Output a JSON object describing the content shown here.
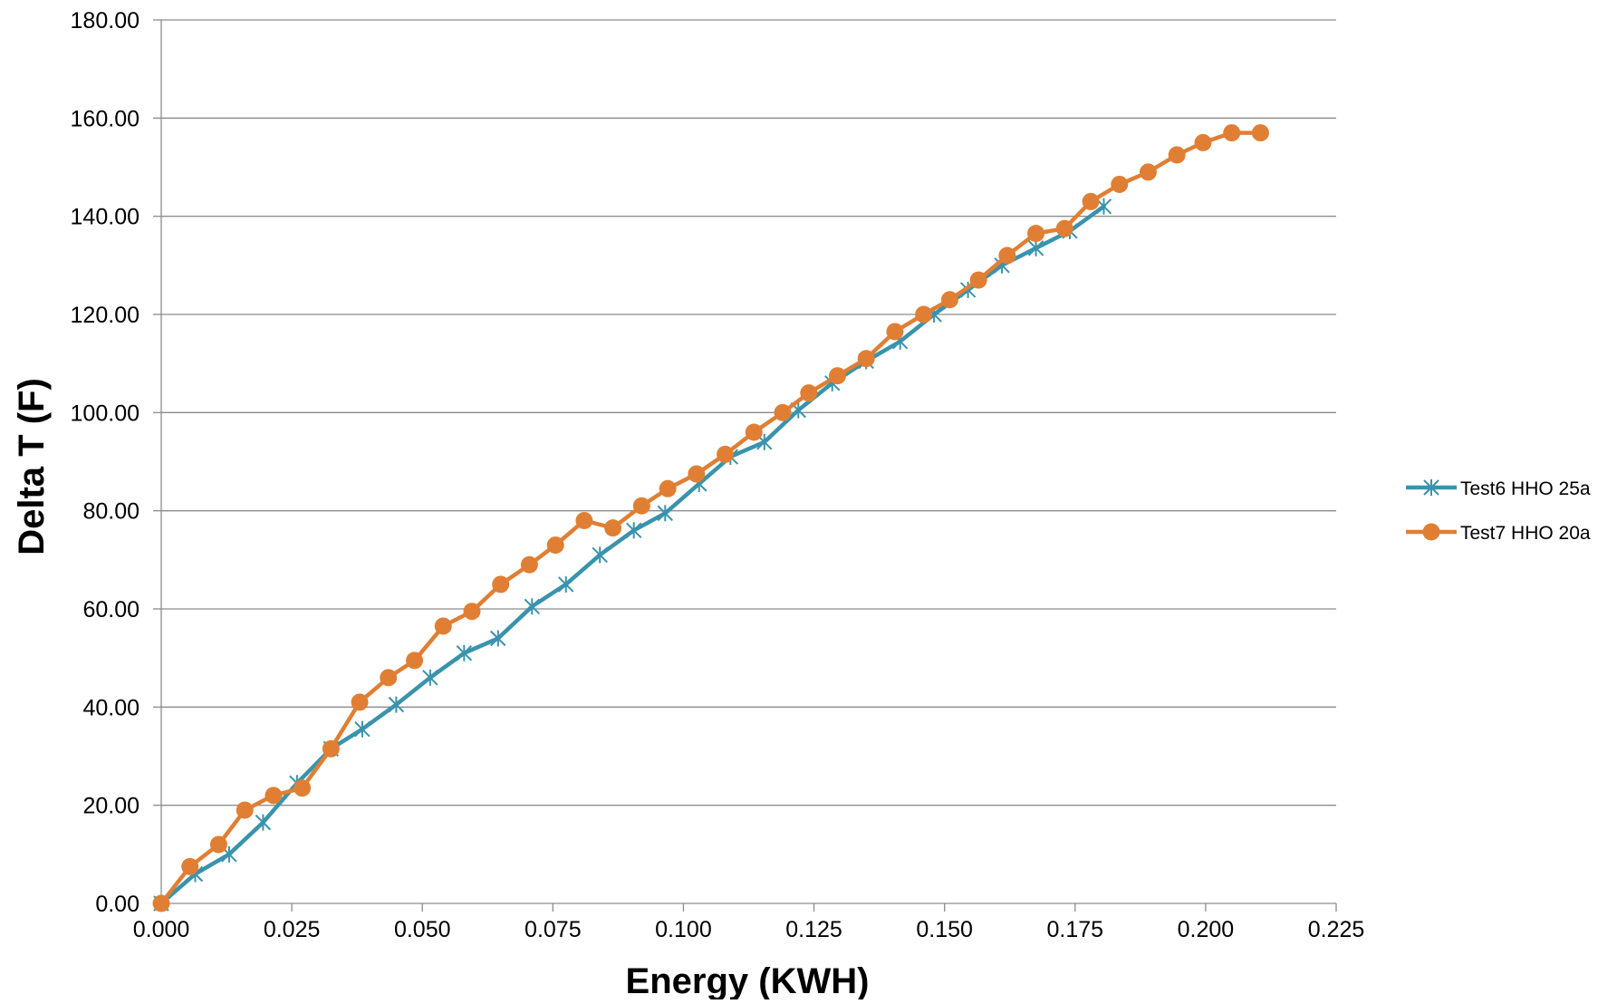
{
  "chart_data": {
    "type": "line",
    "title": "",
    "xlabel": "Energy (KWH)",
    "ylabel": "Delta T (F)",
    "xlim": [
      0,
      0.225
    ],
    "ylim": [
      0,
      180
    ],
    "x_ticks": [
      "0.000",
      "0.025",
      "0.050",
      "0.075",
      "0.100",
      "0.125",
      "0.150",
      "0.175",
      "0.200",
      "0.225"
    ],
    "y_ticks": [
      "0.00",
      "20.00",
      "40.00",
      "60.00",
      "80.00",
      "100.00",
      "120.00",
      "140.00",
      "160.00",
      "180.00"
    ],
    "grid": "horizontal",
    "legend_position": "right",
    "series": [
      {
        "name": "Test6 HHO 25a",
        "color": "#3A93AD",
        "marker": "star",
        "points": [
          [
            0.0,
            0.0
          ],
          [
            0.0065,
            6.0
          ],
          [
            0.013,
            10.0
          ],
          [
            0.0195,
            16.5
          ],
          [
            0.026,
            24.5
          ],
          [
            0.0325,
            31.5
          ],
          [
            0.0385,
            35.5
          ],
          [
            0.045,
            40.5
          ],
          [
            0.0515,
            46.0
          ],
          [
            0.058,
            51.0
          ],
          [
            0.0645,
            54.0
          ],
          [
            0.071,
            60.5
          ],
          [
            0.0775,
            65.0
          ],
          [
            0.084,
            71.0
          ],
          [
            0.0905,
            76.0
          ],
          [
            0.0965,
            79.5
          ],
          [
            0.103,
            85.5
          ],
          [
            0.109,
            91.0
          ],
          [
            0.1155,
            94.0
          ],
          [
            0.122,
            100.5
          ],
          [
            0.1285,
            106.0
          ],
          [
            0.135,
            110.5
          ],
          [
            0.1415,
            114.5
          ],
          [
            0.148,
            120.0
          ],
          [
            0.1545,
            125.0
          ],
          [
            0.161,
            130.0
          ],
          [
            0.1675,
            133.5
          ],
          [
            0.174,
            137.0
          ],
          [
            0.1805,
            142.0
          ]
        ]
      },
      {
        "name": "Test7 HHO 20a",
        "color": "#E07F34",
        "marker": "circle",
        "points": [
          [
            0.0,
            0.0
          ],
          [
            0.0055,
            7.5
          ],
          [
            0.011,
            12.0
          ],
          [
            0.016,
            19.0
          ],
          [
            0.0215,
            22.0
          ],
          [
            0.027,
            23.5
          ],
          [
            0.0325,
            31.5
          ],
          [
            0.038,
            41.0
          ],
          [
            0.0435,
            46.0
          ],
          [
            0.0485,
            49.5
          ],
          [
            0.054,
            56.5
          ],
          [
            0.0595,
            59.5
          ],
          [
            0.065,
            65.0
          ],
          [
            0.0705,
            69.0
          ],
          [
            0.0755,
            73.0
          ],
          [
            0.081,
            78.0
          ],
          [
            0.0865,
            76.5
          ],
          [
            0.092,
            81.0
          ],
          [
            0.097,
            84.5
          ],
          [
            0.1025,
            87.5
          ],
          [
            0.108,
            91.5
          ],
          [
            0.1135,
            96.0
          ],
          [
            0.119,
            100.0
          ],
          [
            0.124,
            104.0
          ],
          [
            0.1295,
            107.5
          ],
          [
            0.135,
            111.0
          ],
          [
            0.1405,
            116.5
          ],
          [
            0.146,
            120.0
          ],
          [
            0.151,
            123.0
          ],
          [
            0.1565,
            127.0
          ],
          [
            0.162,
            132.0
          ],
          [
            0.1675,
            136.5
          ],
          [
            0.173,
            137.5
          ],
          [
            0.178,
            143.0
          ],
          [
            0.1835,
            146.5
          ],
          [
            0.189,
            149.0
          ],
          [
            0.1945,
            152.5
          ],
          [
            0.1995,
            155.0
          ],
          [
            0.205,
            157.0
          ],
          [
            0.2105,
            157.0
          ]
        ]
      }
    ]
  }
}
